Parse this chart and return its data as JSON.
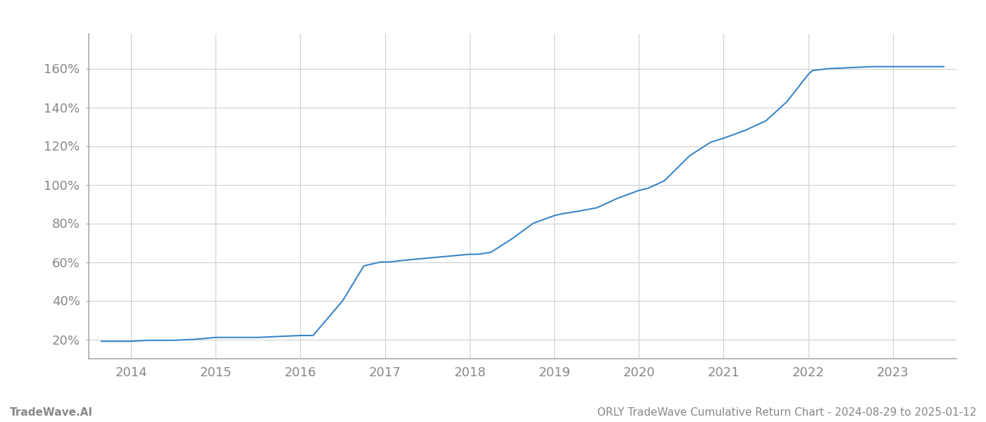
{
  "x_values": [
    2013.65,
    2014.0,
    2014.2,
    2014.5,
    2014.75,
    2015.0,
    2015.25,
    2015.5,
    2015.75,
    2016.0,
    2016.05,
    2016.15,
    2016.5,
    2016.75,
    2016.95,
    2017.05,
    2017.25,
    2017.5,
    2017.75,
    2018.0,
    2018.1,
    2018.25,
    2018.5,
    2018.75,
    2019.0,
    2019.1,
    2019.25,
    2019.5,
    2019.75,
    2020.0,
    2020.1,
    2020.3,
    2020.6,
    2020.85,
    2021.0,
    2021.25,
    2021.5,
    2021.75,
    2022.0,
    2022.05,
    2022.25,
    2022.5,
    2022.75,
    2023.0,
    2023.3,
    2023.6
  ],
  "y_values": [
    19,
    19,
    19.5,
    19.5,
    20,
    21,
    21,
    21,
    21.5,
    22,
    22,
    22,
    40,
    58,
    60,
    60,
    61,
    62,
    63,
    64,
    64,
    65,
    72,
    80,
    84,
    85,
    86,
    88,
    93,
    97,
    98,
    102,
    115,
    122,
    124,
    128,
    133,
    143,
    157,
    159,
    160,
    160.5,
    161,
    161,
    161,
    161
  ],
  "line_color": "#3a87c8",
  "line_width": 1.5,
  "background_color": "#ffffff",
  "grid_color": "#d0d0d0",
  "x_tick_labels": [
    "2014",
    "2015",
    "2016",
    "2017",
    "2018",
    "2019",
    "2020",
    "2021",
    "2022",
    "2023"
  ],
  "x_tick_positions": [
    2014,
    2015,
    2016,
    2017,
    2018,
    2019,
    2020,
    2021,
    2022,
    2023
  ],
  "y_tick_labels": [
    "20%",
    "40%",
    "60%",
    "80%",
    "100%",
    "120%",
    "140%",
    "160%"
  ],
  "y_tick_values": [
    20,
    40,
    60,
    80,
    100,
    120,
    140,
    160
  ],
  "ylim": [
    10,
    178
  ],
  "xlim": [
    2013.5,
    2023.75
  ],
  "footer_left": "TradeWave.AI",
  "footer_right": "ORLY TradeWave Cumulative Return Chart - 2024-08-29 to 2025-01-12",
  "footer_color": "#888888",
  "footer_fontsize": 11,
  "tick_label_color": "#888888",
  "tick_label_fontsize": 13,
  "left_spine_color": "#aaaaaa",
  "bottom_spine_color": "#aaaaaa"
}
